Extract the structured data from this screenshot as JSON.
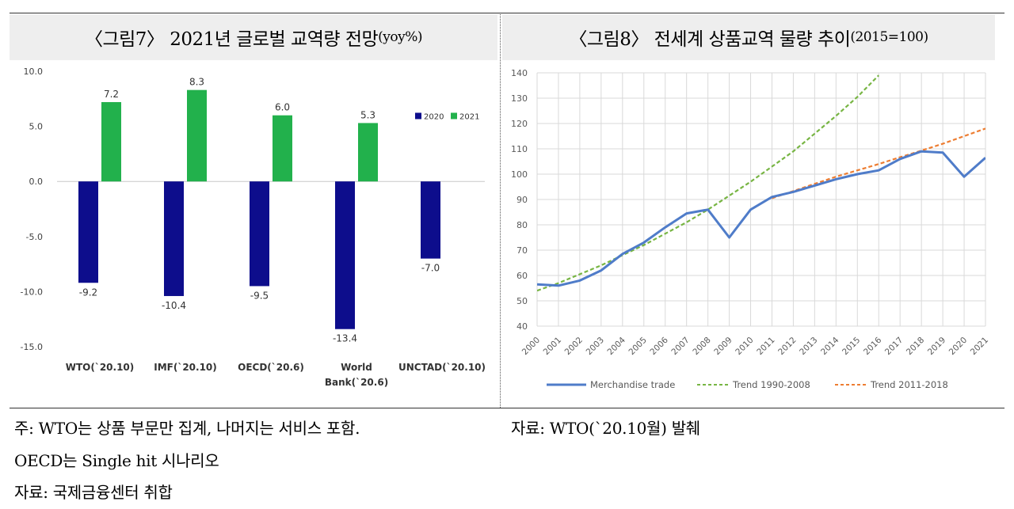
{
  "left_title": {
    "main": "〈그림7〉 2021년 글로벌 교역량 전망",
    "unit": "(yoy%)"
  },
  "right_title": {
    "main": "〈그림8〉 전세계 상품교역 물량 추이",
    "unit": "(2015=100)"
  },
  "notes": {
    "left_line1": "주: WTO는 상품 부문만 집계, 나머지는 서비스 포함.",
    "left_line2": "OECD는 Single hit 시나리오",
    "left_line3": "자료: 국제금융센터 취합",
    "right_line1": "자료: WTO(`20.10월) 발췌"
  },
  "chart_data": [
    {
      "type": "bar",
      "categories": [
        [
          "WTO(`20.10)"
        ],
        [
          "IMF(`20.10)"
        ],
        [
          "OECD(`20.6)"
        ],
        [
          "World",
          "Bank(`20.6)"
        ],
        [
          "UNCTAD(`20.10)"
        ]
      ],
      "series": [
        {
          "name": "2020",
          "color": "#0d0d8c",
          "values": [
            -9.2,
            -10.4,
            -9.5,
            -13.4,
            -7.0
          ],
          "labels": [
            "-9.2",
            "-10.4",
            "-9.5",
            "-13.4",
            "-7.0"
          ]
        },
        {
          "name": "2021",
          "color": "#22b14c",
          "values": [
            7.2,
            8.3,
            6.0,
            5.3,
            null
          ],
          "labels": [
            "7.2",
            "8.3",
            "6.0",
            "5.3",
            ""
          ]
        }
      ],
      "ylim": [
        -15,
        10
      ],
      "yticks": [
        10,
        5,
        0,
        -5,
        -10,
        -15
      ],
      "ytick_labels": [
        "10.0",
        "5.0",
        "0.0",
        "-5.0",
        "-10.0",
        "-15.0"
      ],
      "grid": false,
      "legend": "top-right"
    },
    {
      "type": "line",
      "x": [
        2000,
        2001,
        2002,
        2003,
        2004,
        2005,
        2006,
        2007,
        2008,
        2009,
        2010,
        2011,
        2012,
        2013,
        2014,
        2015,
        2016,
        2017,
        2018,
        2019,
        2020,
        2021
      ],
      "xtick_labels": [
        "2000",
        "2001",
        "2002",
        "2003",
        "2004",
        "2005",
        "2006",
        "2007",
        "2008",
        "2009",
        "2010",
        "2011",
        "2012",
        "2013",
        "2014",
        "2015",
        "2016",
        "2017",
        "2018",
        "2019",
        "2020",
        "2021"
      ],
      "ylim": [
        40,
        140
      ],
      "yticks": [
        40,
        50,
        60,
        70,
        80,
        90,
        100,
        110,
        120,
        130,
        140
      ],
      "grid": true,
      "legend": "bottom",
      "series": [
        {
          "name": "Merchandise trade",
          "style": "solid",
          "color": "#4f7cc9",
          "x": [
            2000,
            2001,
            2002,
            2003,
            2004,
            2005,
            2006,
            2007,
            2008,
            2009,
            2010,
            2011,
            2012,
            2013,
            2014,
            2015,
            2016,
            2017,
            2018,
            2019,
            2020,
            2021
          ],
          "values": [
            56.5,
            56,
            58,
            62,
            68.5,
            73,
            79,
            84.5,
            86,
            75,
            86,
            91,
            93,
            95.5,
            98,
            100,
            101.5,
            106,
            109,
            108.5,
            99,
            106.5
          ]
        },
        {
          "name": "Trend 1990-2008",
          "style": "dashed",
          "color": "#77b543",
          "x": [
            2000,
            2001,
            2002,
            2003,
            2004,
            2005,
            2006,
            2007,
            2008,
            2009,
            2010,
            2011,
            2012,
            2013,
            2014,
            2015,
            2016
          ],
          "values": [
            54,
            57,
            60.5,
            64,
            68,
            72,
            76.5,
            81,
            86,
            91.5,
            97,
            103,
            109,
            116,
            123,
            130.5,
            139
          ]
        },
        {
          "name": "Trend 2011-2018",
          "style": "dashed",
          "color": "#ed7d31",
          "x": [
            2011,
            2012,
            2013,
            2014,
            2015,
            2016,
            2017,
            2018,
            2019,
            2020,
            2021
          ],
          "values": [
            90.5,
            93.3,
            96.2,
            99,
            101.5,
            104,
            106.7,
            109.3,
            112,
            115,
            118
          ]
        }
      ]
    }
  ]
}
